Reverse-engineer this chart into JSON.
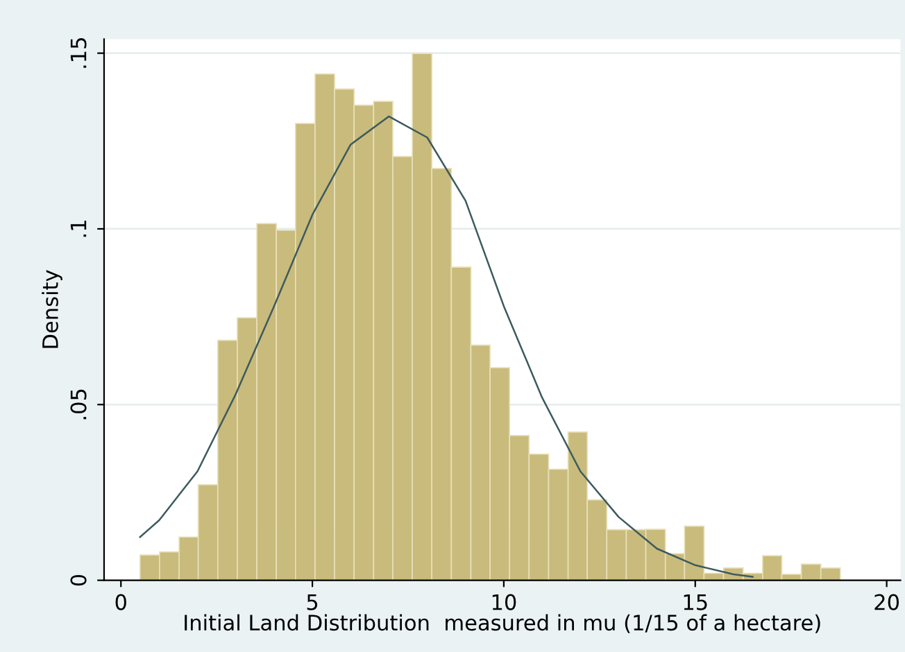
{
  "chart_data": [
    {
      "type": "histogram",
      "xlabel": "Initial Land Distribution  measured in mu (1/15 of a hectare)",
      "ylabel": "Density",
      "bins": [
        0.5,
        1.01,
        1.52,
        2.02,
        2.53,
        3.04,
        3.55,
        4.06,
        4.56,
        5.07,
        5.58,
        6.09,
        6.6,
        7.1,
        7.61,
        8.12,
        8.63,
        9.14,
        9.64,
        10.15,
        10.66,
        11.17,
        11.68,
        12.18,
        12.69,
        13.2,
        13.71,
        14.22,
        14.72,
        15.23,
        15.74,
        16.25,
        16.76,
        17.26,
        17.77,
        18.28,
        18.79
      ],
      "values": [
        0.0072,
        0.0081,
        0.0123,
        0.0272,
        0.0683,
        0.0747,
        0.1015,
        0.0996,
        0.13,
        0.1441,
        0.1398,
        0.1352,
        0.1363,
        0.1206,
        0.1499,
        0.1172,
        0.0891,
        0.0669,
        0.0605,
        0.0412,
        0.0359,
        0.0316,
        0.0422,
        0.0229,
        0.0144,
        0.0144,
        0.0145,
        0.0076,
        0.0154,
        0.002,
        0.0035,
        0.002,
        0.007,
        0.0017,
        0.0046,
        0.0035
      ],
      "color": "#c9bb7c",
      "series": [
        {
          "type": "line",
          "color": "#3d5a5e",
          "x": [
            0.5,
            1,
            2,
            3,
            4,
            5,
            6,
            7,
            8,
            9,
            10,
            11,
            12,
            13,
            14,
            15,
            16,
            16.5
          ],
          "values": [
            0.0123,
            0.0171,
            0.031,
            0.053,
            0.078,
            0.104,
            0.124,
            0.132,
            0.126,
            0.108,
            0.078,
            0.052,
            0.031,
            0.018,
            0.009,
            0.0043,
            0.0017,
            0.001
          ]
        }
      ],
      "xlim": [
        -0.44,
        20.36
      ],
      "ylim": [
        0,
        0.154
      ],
      "xticks": [
        0,
        5,
        10,
        15,
        20
      ],
      "yticks": [
        0,
        {
          "value": 0.05,
          "label": ".05"
        },
        {
          "value": 0.1,
          "label": ".1"
        },
        {
          "value": 0.15,
          "label": ".15"
        }
      ],
      "grid": "y"
    }
  ]
}
